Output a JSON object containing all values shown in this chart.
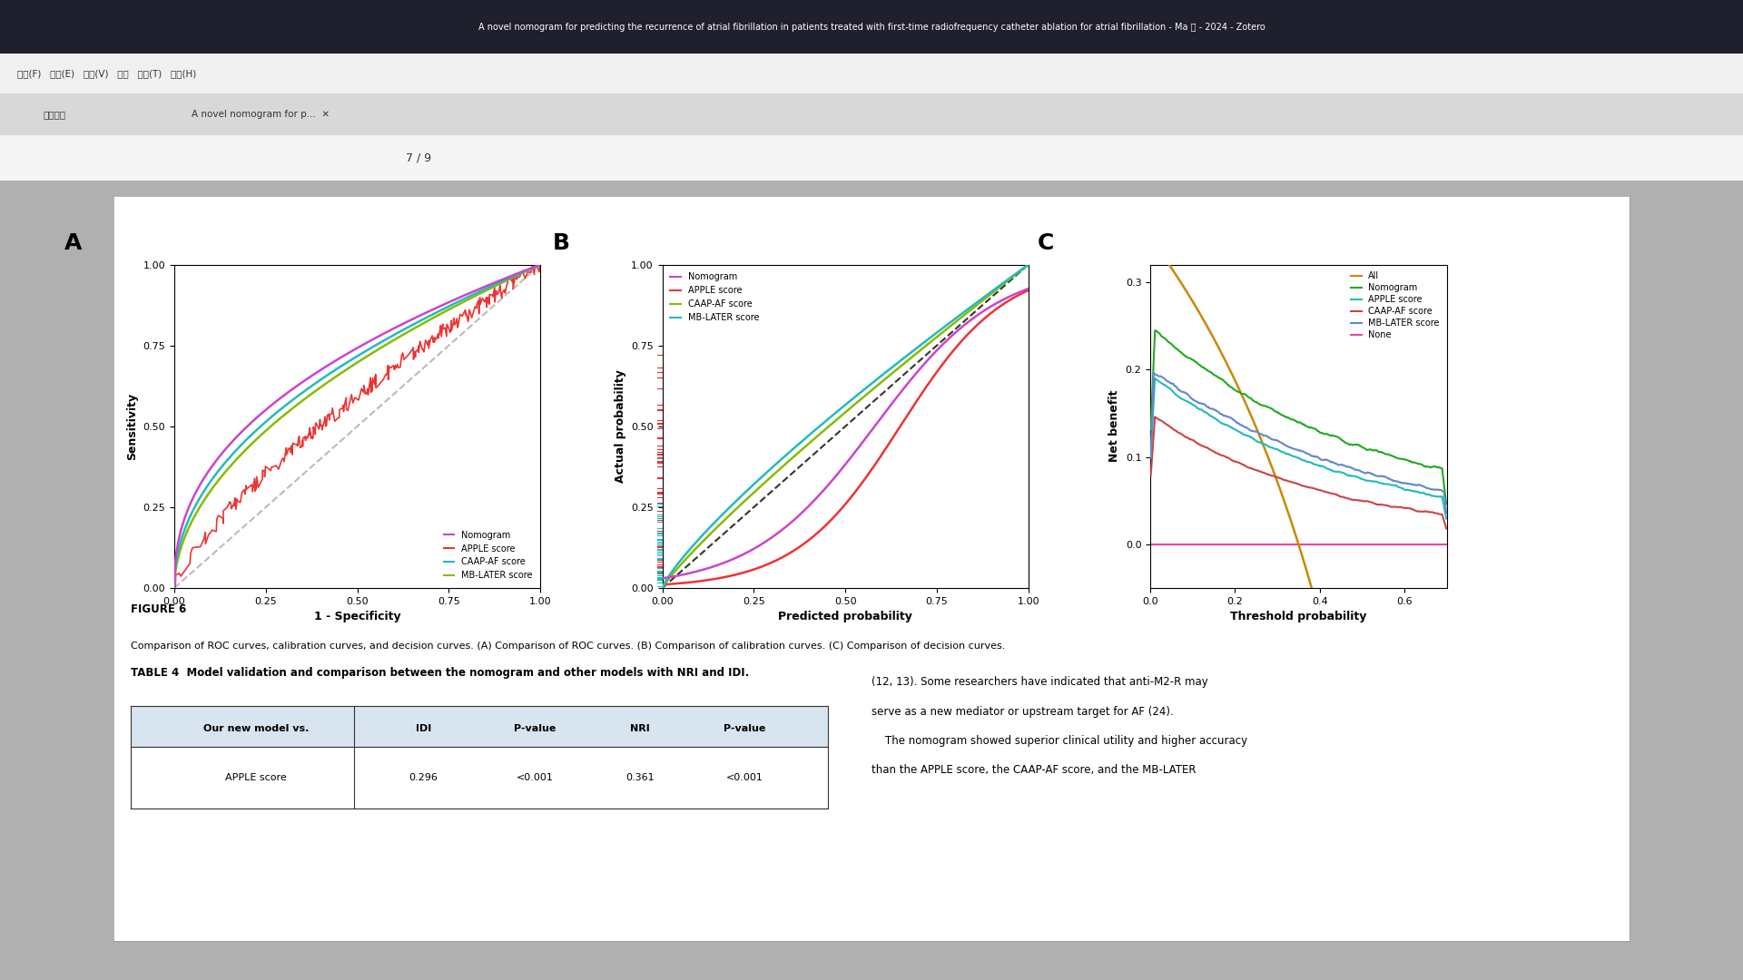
{
  "fig_width": 19.2,
  "fig_height": 10.8,
  "browser": {
    "title_bar_color": "#1a1a2e",
    "toolbar_color": "#f0f0f0",
    "tab_color": "#ffffff"
  },
  "page_bg": "#d0d0d0",
  "paper_bg": "#ffffff",
  "paper_border": "#aaaaaa",
  "panel_A": {
    "label": "A",
    "xlabel": "1 - Specificity",
    "ylabel": "Sensitivity",
    "xlim": [
      0.0,
      1.0
    ],
    "ylim": [
      0.0,
      1.0
    ],
    "xticks": [
      0.0,
      0.25,
      0.5,
      0.75,
      1.0
    ],
    "yticks": [
      0.0,
      0.25,
      0.5,
      0.75,
      1.0
    ],
    "curves": {
      "APPLE_color": "#ee3333",
      "Nomogram_color": "#cc44cc",
      "CAAP_color": "#22bbbb",
      "MB_color": "#88bb00"
    },
    "diag_color": "#bbbbbb",
    "legend_labels": [
      "Nomogram",
      "APPLE score",
      "CAAP-AF score",
      "MB-LATER score"
    ],
    "legend_colors": [
      "#cc44cc",
      "#ee3333",
      "#22bbbb",
      "#88bb00"
    ],
    "legend_loc": "lower right"
  },
  "panel_B": {
    "label": "B",
    "xlabel": "Predicted probability",
    "ylabel": "Actual probability",
    "xlim": [
      0.0,
      1.0
    ],
    "ylim": [
      0.0,
      1.0
    ],
    "xticks": [
      0.0,
      0.25,
      0.5,
      0.75,
      1.0
    ],
    "yticks": [
      0.0,
      0.25,
      0.5,
      0.75,
      1.0
    ],
    "curves": {
      "Nomogram_color": "#cc44cc",
      "APPLE_color": "#ee3333",
      "CAAP_color": "#88bb00",
      "MB_color": "#22bbbb"
    },
    "diag_color": "#333333",
    "legend_labels": [
      "Nomogram",
      "APPLE score",
      "CAAP-AF score",
      "MB-LATER score"
    ],
    "legend_colors": [
      "#cc44cc",
      "#ee3333",
      "#88bb00",
      "#22bbbb"
    ],
    "legend_loc": "upper left"
  },
  "panel_C": {
    "label": "C",
    "xlabel": "Threshold probability",
    "ylabel": "Net benefit",
    "xlim": [
      0.0,
      0.7
    ],
    "ylim": [
      -0.05,
      0.32
    ],
    "xticks": [
      0.0,
      0.2,
      0.4,
      0.6
    ],
    "yticks": [
      0.0,
      0.1,
      0.2,
      0.3
    ],
    "legend_labels": [
      "All",
      "Nomogram",
      "APPLE score",
      "CAAP-AF score",
      "MB-LATER score",
      "None"
    ],
    "legend_colors": [
      "#cc8800",
      "#22aa22",
      "#22bbbb",
      "#cc4444",
      "#6688cc",
      "#ee44aa"
    ],
    "legend_loc": "upper right"
  },
  "figure_caption_label": "FIGURE 6",
  "figure_caption_text": "Comparison of ROC curves, calibration curves, and decision curves. (A) Comparison of ROC curves. (B) Comparison of calibration curves. (C) Comparison of decision curves.",
  "table_title": "TABLE 4  Model validation and comparison between the nomogram and other models with NRI and IDI.",
  "table_subtitle": "Our new model vs.",
  "table_headers": [
    "IDI",
    "P-value",
    "NRI",
    "P-value"
  ],
  "table_row1": [
    "APPLE score",
    "0.296",
    "<0.001",
    "0.361",
    "<0.001"
  ],
  "right_text_1": "(12, 13). Some researchers have indicated that anti-M2-R may",
  "right_text_2": "serve as a new mediator or upstream target for AF (24).",
  "right_text_3": "    The nomogram showed superior clinical utility and higher accuracy",
  "right_text_4": "than the APPLE score, the CAAP-AF score, and the MB-LATER"
}
